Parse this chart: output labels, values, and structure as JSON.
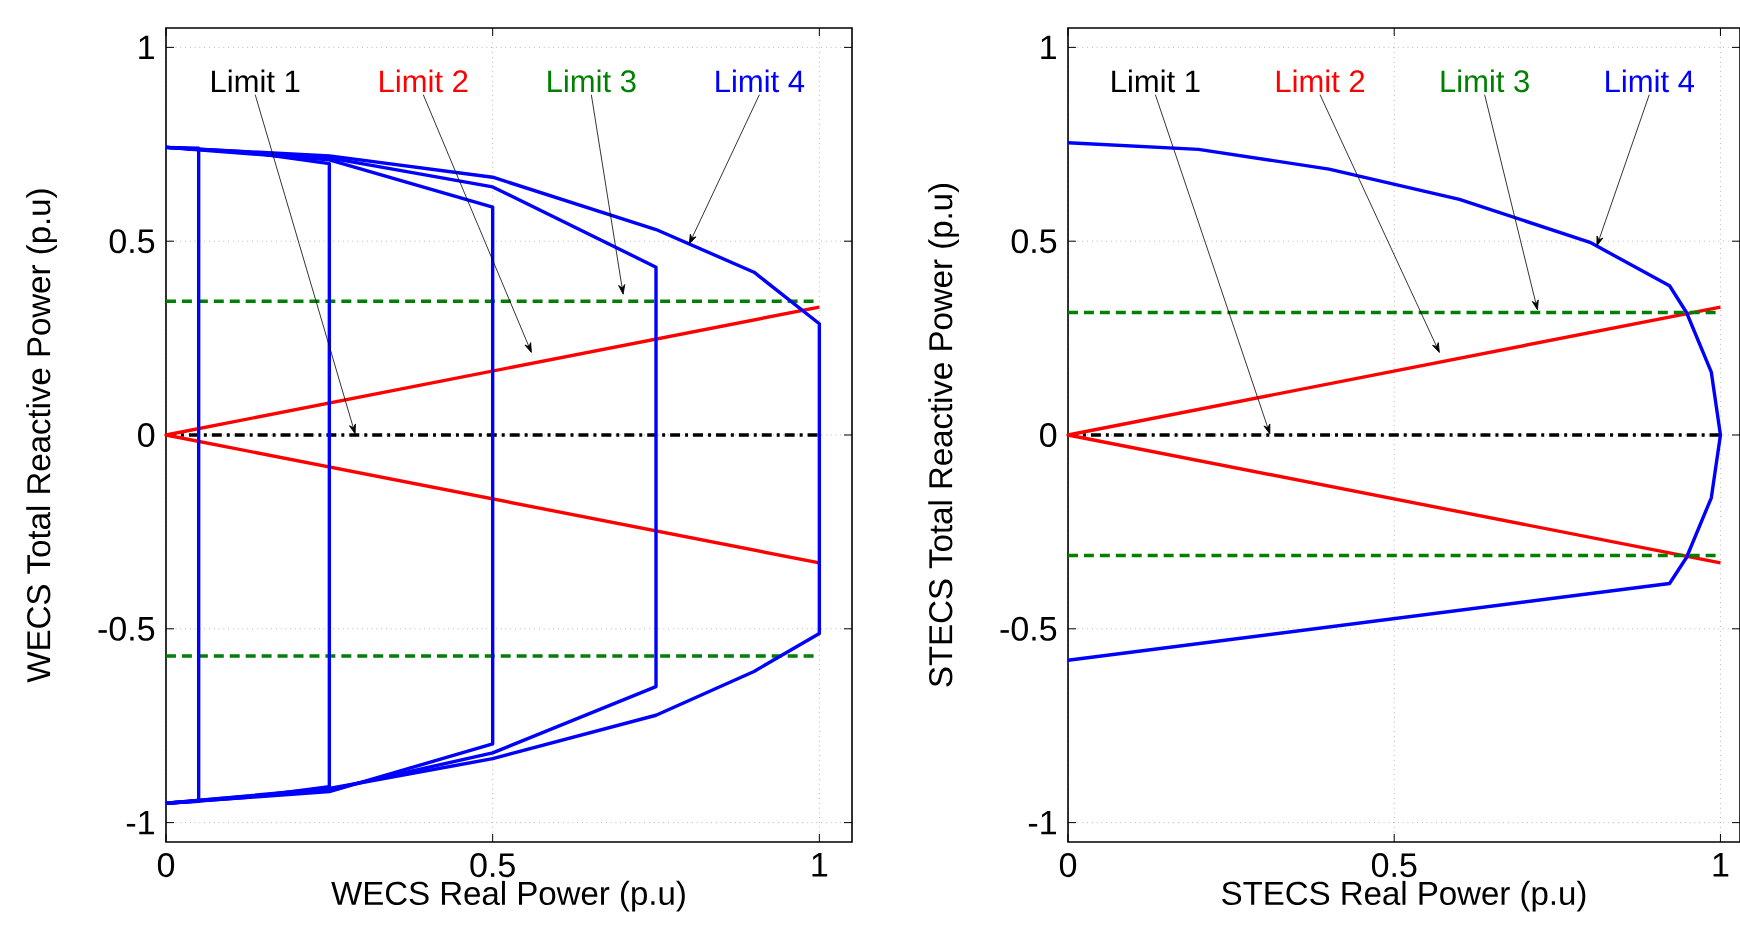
{
  "chart_data": [
    {
      "type": "line",
      "xlabel": "WECS Real Power (p.u)",
      "ylabel": "WECS Total Reactive Power (p.u)",
      "xlim": [
        0,
        1.05
      ],
      "ylim": [
        -1.05,
        1.05
      ],
      "xticks": [
        0,
        0.5,
        1
      ],
      "yticks": [
        -1,
        -0.5,
        0,
        0.5,
        1
      ],
      "grid": true,
      "series": [
        {
          "color": "#000000",
          "line_style": "dashdot",
          "x": [
            0,
            1
          ],
          "values": [
            0,
            0
          ]
        },
        {
          "color": "#ff0000",
          "x": [
            1,
            0,
            1
          ],
          "values": [
            0.33,
            0,
            -0.33
          ]
        },
        {
          "color": "#008000",
          "line_style": "dashed",
          "x": [
            0,
            1
          ],
          "values": [
            0.345,
            0.345
          ]
        },
        {
          "color": "#008000",
          "line_style": "dashed",
          "x": [
            0,
            1
          ],
          "values": [
            -0.57,
            -0.57
          ]
        },
        {
          "color": "#0000ff",
          "x": [
            0,
            0.05,
            0.05,
            0
          ],
          "values": [
            0.742,
            0.74,
            -0.945,
            -0.95
          ]
        },
        {
          "color": "#0000ff",
          "x": [
            0,
            0.125,
            0.25,
            0.25,
            0.125,
            0
          ],
          "values": [
            0.742,
            0.73,
            0.7,
            -0.907,
            -0.935,
            -0.95
          ]
        },
        {
          "color": "#0000ff",
          "x": [
            0,
            0.25,
            0.5,
            0.5,
            0.25,
            0
          ],
          "values": [
            0.742,
            0.71,
            0.588,
            -0.797,
            -0.92,
            -0.95
          ]
        },
        {
          "color": "#0000ff",
          "x": [
            0,
            0.25,
            0.5,
            0.75,
            0.75,
            0.5,
            0.25,
            0
          ],
          "values": [
            0.742,
            0.715,
            0.64,
            0.433,
            -0.649,
            -0.82,
            -0.915,
            -0.95
          ]
        },
        {
          "color": "#0000ff",
          "x": [
            0,
            0.25,
            0.5,
            0.75,
            0.9,
            1,
            1,
            0.9,
            0.75,
            0.5,
            0.25,
            0
          ],
          "values": [
            0.742,
            0.72,
            0.665,
            0.53,
            0.42,
            0.287,
            -0.512,
            -0.61,
            -0.723,
            -0.835,
            -0.912,
            -0.95
          ]
        }
      ],
      "annotations": [
        {
          "text": "Limit 1",
          "x": 0.29,
          "y": 0
        },
        {
          "text": "Limit 2",
          "x": 0.56,
          "y": 0.21
        },
        {
          "text": "Limit 3",
          "x": 0.7,
          "y": 0.36
        },
        {
          "text": "Limit 4",
          "x": 0.8,
          "y": 0.49
        }
      ]
    },
    {
      "type": "line",
      "xlabel": "STECS Real Power (p.u)",
      "ylabel": "STECS Total Reactive Power (p.u)",
      "xlim": [
        0,
        1.03
      ],
      "ylim": [
        -1.05,
        1.05
      ],
      "xticks": [
        0,
        0.5,
        1
      ],
      "yticks": [
        -1,
        -0.5,
        0,
        0.5,
        1
      ],
      "grid": true,
      "series": [
        {
          "color": "#000000",
          "line_style": "dashdot",
          "x": [
            0,
            1
          ],
          "values": [
            0,
            0
          ]
        },
        {
          "color": "#ff0000",
          "x": [
            1,
            0,
            1
          ],
          "values": [
            0.33,
            0,
            -0.33
          ]
        },
        {
          "color": "#008000",
          "line_style": "dashed",
          "x": [
            0,
            1
          ],
          "values": [
            0.316,
            0.316
          ]
        },
        {
          "color": "#008000",
          "line_style": "dashed",
          "x": [
            0,
            1
          ],
          "values": [
            -0.311,
            -0.311
          ]
        },
        {
          "color": "#0000ff",
          "x": [
            0,
            0.2,
            0.4,
            0.6,
            0.8,
            0.922,
            0.948,
            0.986,
            1,
            0.986,
            0.948,
            0.922,
            0
          ],
          "values": [
            0.754,
            0.737,
            0.686,
            0.608,
            0.497,
            0.385,
            0.316,
            0.162,
            0,
            -0.162,
            -0.316,
            -0.383,
            -0.581
          ]
        }
      ],
      "annotations": [
        {
          "text": "Limit 1",
          "x": 0.31,
          "y": 0
        },
        {
          "text": "Limit 2",
          "x": 0.57,
          "y": 0.21
        },
        {
          "text": "Limit 3",
          "x": 0.72,
          "y": 0.32
        },
        {
          "text": "Limit 4",
          "x": 0.81,
          "y": 0.485
        }
      ]
    }
  ]
}
